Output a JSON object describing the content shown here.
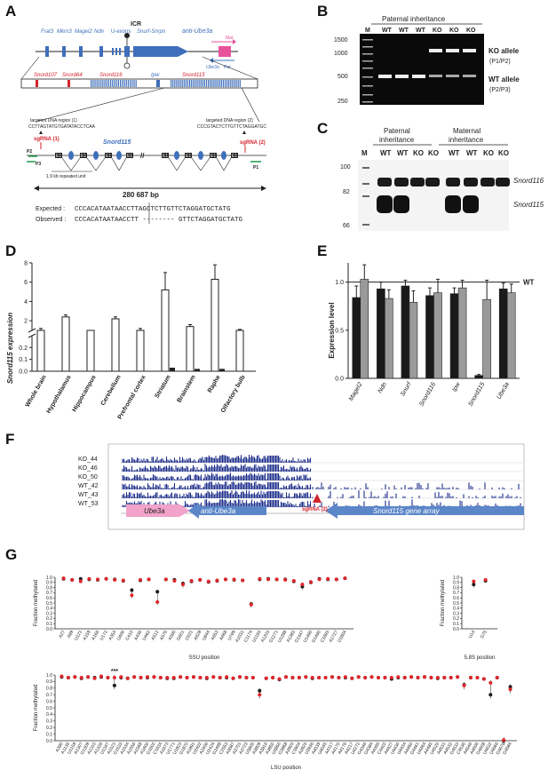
{
  "panels": [
    "A",
    "B",
    "C",
    "D",
    "E",
    "F",
    "G"
  ],
  "panelA": {
    "top_genes": [
      "Frat3",
      "Mkrn3",
      "Magel2",
      "Ndn",
      "Snurf-Snrpn",
      "Snord115",
      "anti-Ube3a"
    ],
    "uexons": "U-exons",
    "icr": "ICR",
    "mat": "Mat",
    "pat": "Pat",
    "ube3a": "Ube3a",
    "cluster_genes": [
      "Snord107",
      "Snord64",
      "Snord116",
      "Ipw",
      "Snord115"
    ],
    "target1": "targeted DNA region (1)",
    "target1_seq": "CCTTAGTATGTGATATACCTCAA",
    "target2": "targeted DNA region (2)",
    "target2_seq": "CCCGTACTCTTGTTCTAGGATGC",
    "sgRNA1": "sgRNA (1)",
    "sgRNA2": "sgRNA (2)",
    "snord115_label": "Snord115",
    "primers": [
      "P2",
      "P3",
      "P1"
    ],
    "repeat_unit": "1.9 kb repeated unit",
    "length": "280 687 bp",
    "expected_label": "Expected :",
    "expected_seq": "CCCACATAATAACCTTAGCTCTTGTTCTAGGATGCTATG",
    "observed_label": "Observed :",
    "observed_seq": "CCCACATAATAACCTT -------- GTTCTAGGATGCTATG"
  },
  "panelB": {
    "title": "Paternal inheritance",
    "lanes": [
      "M",
      "WT",
      "WT",
      "WT",
      "KO",
      "KO",
      "KO"
    ],
    "markers": [
      "1500",
      "1000",
      "500",
      "250"
    ],
    "ko_allele": "KO allele",
    "ko_primers": "(P1/P2)",
    "wt_allele": "WT  allele",
    "wt_primers": "(P2/P3)"
  },
  "panelC": {
    "paternal": "Paternal",
    "maternal": "Maternal",
    "inheritance": "inheritance",
    "lanes": [
      "M",
      "WT",
      "WT",
      "KO",
      "KO",
      "WT",
      "WT",
      "KO",
      "KO"
    ],
    "markers": [
      "100",
      "82",
      "66"
    ],
    "band_labels": [
      "Snord116",
      "Snord115"
    ]
  },
  "chart_data": [
    {
      "type": "bar",
      "panel": "D",
      "ylabel": "Snord115 expression",
      "categories": [
        "Whole brain",
        "Hypothalamus",
        "Hippocampus",
        "Cerebellum",
        "Prefrontal cortex",
        "Striatum",
        "Brainstem",
        "Raphe",
        "Olfactory bulb"
      ],
      "series": [
        {
          "name": "WT",
          "values": [
            1.0,
            2.4,
            0.9,
            2.2,
            1.0,
            5.2,
            1.4,
            6.3,
            1.0
          ],
          "errors": [
            0.2,
            0.2,
            0.1,
            0.2,
            0.2,
            1.8,
            0.2,
            1.5,
            0.1
          ]
        },
        {
          "name": "KO",
          "values": [
            0.0,
            0.0,
            0.0,
            0.0,
            0.0,
            0.03,
            0.02,
            0.02,
            0.0
          ]
        }
      ],
      "yticks_upper": [
        "2",
        "4",
        "6",
        "8"
      ],
      "yticks_lower": [
        "0.0",
        "0.1",
        "0.2"
      ]
    },
    {
      "type": "bar",
      "panel": "E",
      "ylabel": "Expression level",
      "reference_label": "WT",
      "categories": [
        "Magel2",
        "Ndn",
        "Snurf",
        "Snord116",
        "Ipw",
        "Snord115",
        "Ube3a"
      ],
      "series": [
        {
          "name": "WT",
          "values": [
            0.84,
            0.93,
            0.96,
            0.86,
            0.88,
            0.03,
            0.93
          ],
          "errors": [
            0.12,
            0.07,
            0.06,
            0.08,
            0.06,
            0.01,
            0.06
          ]
        },
        {
          "name": "KO",
          "values": [
            1.03,
            0.83,
            0.79,
            0.89,
            0.94,
            0.82,
            0.89
          ],
          "errors": [
            0.15,
            0.09,
            0.12,
            0.14,
            0.08,
            0.2,
            0.09
          ]
        }
      ],
      "yticks": [
        "0.0",
        "0.5",
        "1.0"
      ],
      "ylim": [
        0,
        1.2
      ]
    },
    {
      "type": "scatter",
      "panel": "G-SSU",
      "xlabel": "SSU position",
      "ylabel": "Fraction methylated",
      "ylim": [
        0,
        1.0
      ],
      "yticks": [
        "0.0",
        "0.1",
        "0.2",
        "0.3",
        "0.4",
        "0.5",
        "0.6",
        "0.7",
        "0.8",
        "0.9",
        "1.0"
      ],
      "x": [
        "A27",
        "A99",
        "U121",
        "A159",
        "A166",
        "U172",
        "A354",
        "U406",
        "C410",
        "A436",
        "U462",
        "A512",
        "A576",
        "A590",
        "G601",
        "C621",
        "A628",
        "U644",
        "A653",
        "A668",
        "U799",
        "A1031",
        "C1174",
        "U1193",
        "A1203",
        "G1271",
        "U1288",
        "A1383",
        "G1447",
        "U1490",
        "G1490",
        "C1693",
        "A1727",
        "U1804"
      ],
      "series": [
        {
          "name": "WT",
          "values": [
            0.97,
            0.95,
            0.97,
            0.96,
            0.95,
            0.97,
            0.96,
            0.93,
            0.75,
            0.94,
            0.96,
            0.72,
            0.96,
            0.95,
            0.88,
            0.92,
            0.95,
            0.91,
            0.93,
            0.96,
            0.95,
            0.94,
            0.48,
            0.96,
            0.97,
            0.96,
            0.96,
            0.92,
            0.82,
            0.9,
            0.97,
            0.96,
            0.96,
            0.98
          ]
        },
        {
          "name": "KO",
          "values": [
            0.98,
            0.95,
            0.92,
            0.97,
            0.96,
            0.97,
            0.95,
            0.94,
            0.65,
            0.95,
            0.96,
            0.52,
            0.96,
            0.93,
            0.86,
            0.93,
            0.95,
            0.92,
            0.94,
            0.96,
            0.96,
            0.94,
            0.47,
            0.97,
            0.96,
            0.96,
            0.95,
            0.93,
            0.86,
            0.91,
            0.96,
            0.97,
            0.96,
            0.98
          ]
        }
      ]
    },
    {
      "type": "scatter",
      "panel": "G-5.8S",
      "xlabel": "5.8S position",
      "ylabel": "Fraction methylated",
      "ylim": [
        0,
        1.0
      ],
      "yticks": [
        "0.0",
        "0.1",
        "0.2",
        "0.3",
        "0.4",
        "0.5",
        "0.6",
        "0.7",
        "0.8",
        "0.9",
        "1.0"
      ],
      "x": [
        "U14",
        "G75"
      ],
      "annotation": "**",
      "series": [
        {
          "name": "WT",
          "values": [
            0.86,
            0.93
          ]
        },
        {
          "name": "KO",
          "values": [
            0.92,
            0.95
          ]
        }
      ]
    },
    {
      "type": "scatter",
      "panel": "G-LSU",
      "xlabel": "LSU position",
      "ylabel": "Fraction methylated",
      "ylim": [
        0,
        1.0
      ],
      "yticks": [
        "0.0",
        "0.1",
        "0.2",
        "0.3",
        "0.4",
        "0.5",
        "0.6",
        "0.7",
        "0.8",
        "0.9",
        "1.0"
      ],
      "annotation": "***",
      "x": [
        "A390",
        "A1136",
        "U1159",
        "A1307",
        "G1309",
        "A1310",
        "A1326",
        "U1347",
        "A1521",
        "G1533",
        "A1534",
        "A1556",
        "A1568",
        "A1600",
        "G1602",
        "C1634",
        "A1673",
        "U1771",
        "U1823",
        "G1870",
        "A1891",
        "U2402",
        "A2406",
        "U2424",
        "G2498",
        "C2553",
        "A3687",
        "A3701",
        "A3723",
        "U3805",
        "A3809",
        "A3816",
        "A3850",
        "U3856",
        "G3868",
        "A3903",
        "C3904",
        "A3925",
        "U3936",
        "A4039",
        "U4045",
        "A4117",
        "A4170",
        "A4176",
        "A4217",
        "U4272",
        "G4346",
        "G4384",
        "A4395",
        "C4402",
        "A4427",
        "U4430",
        "U4434",
        "A4460",
        "G4461",
        "U4464",
        "A4485",
        "U4520",
        "A4531",
        "A4532",
        "G4533",
        "C4536",
        "A4546",
        "A4606",
        "G4608",
        "U4632",
        "U4666",
        "G4670",
        "G4684"
      ],
      "series": [
        {
          "name": "WT",
          "values": [
            0.97,
            0.96,
            0.97,
            0.95,
            0.97,
            0.96,
            0.97,
            0.96,
            0.84,
            0.96,
            0.95,
            0.97,
            0.96,
            0.96,
            0.97,
            0.96,
            0.95,
            0.95,
            0.97,
            0.96,
            0.97,
            0.96,
            0.95,
            0.97,
            0.96,
            0.96,
            0.95,
            0.97,
            0.96,
            0.96,
            0.76,
            0.95,
            0.96,
            0.93,
            0.97,
            0.96,
            0.96,
            0.97,
            0.95,
            0.96,
            0.96,
            0.97,
            0.96,
            0.96,
            0.95,
            0.97,
            0.96,
            0.97,
            0.96,
            0.96,
            0.94,
            0.96,
            0.96,
            0.97,
            0.96,
            0.97,
            0.96,
            0.95,
            0.96,
            0.96,
            0.97,
            0.85,
            0.96,
            0.96,
            0.94,
            0.7,
            0.96,
            0.0,
            0.82
          ]
        },
        {
          "name": "KO",
          "values": [
            0.98,
            0.96,
            0.97,
            0.96,
            0.97,
            0.95,
            0.98,
            0.96,
            0.96,
            0.97,
            0.95,
            0.97,
            0.96,
            0.97,
            0.97,
            0.96,
            0.96,
            0.96,
            0.97,
            0.96,
            0.97,
            0.96,
            0.96,
            0.97,
            0.96,
            0.97,
            0.95,
            0.97,
            0.96,
            0.96,
            0.7,
            0.95,
            0.96,
            0.94,
            0.97,
            0.96,
            0.96,
            0.97,
            0.96,
            0.96,
            0.96,
            0.97,
            0.96,
            0.97,
            0.95,
            0.97,
            0.96,
            0.97,
            0.96,
            0.96,
            0.96,
            0.97,
            0.96,
            0.97,
            0.96,
            0.97,
            0.96,
            0.96,
            0.96,
            0.96,
            0.97,
            0.84,
            0.96,
            0.96,
            0.94,
            0.88,
            0.96,
            0.01,
            0.78
          ]
        }
      ]
    }
  ],
  "panelF": {
    "tracks": [
      "KO_44",
      "KO_46",
      "KO_50",
      "WT_42",
      "WT_43",
      "WT_53"
    ],
    "ube3a": "Ube3a",
    "anti_ube3a": "anti-Ube3a",
    "array": "Snord115 gene array",
    "sgRNA2": "sgRNA (2)"
  },
  "colors": {
    "wt": "#1a1a1a",
    "ko_bar": "#9a9a9a",
    "ko_dot": "#e0262c",
    "gene_blue": "#3f6fba",
    "red": "#d3232c",
    "pink": "#e8529b",
    "track_blue": "#1e2f8c"
  }
}
